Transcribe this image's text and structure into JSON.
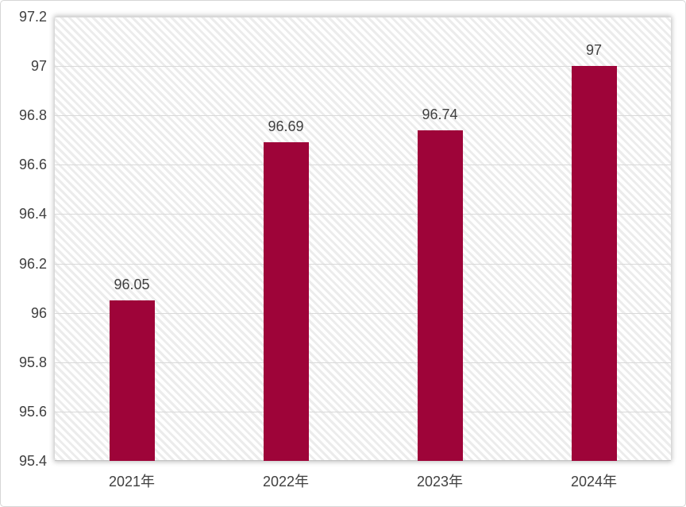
{
  "chart_data": {
    "type": "bar",
    "title": "",
    "xlabel": "",
    "ylabel": "",
    "categories": [
      "2021年",
      "2022年",
      "2023年",
      "2024年"
    ],
    "values": [
      96.05,
      96.69,
      96.74,
      97
    ],
    "data_labels": [
      "96.05",
      "96.69",
      "96.74",
      "97"
    ],
    "y_ticks": [
      "97.2",
      "97",
      "96.8",
      "96.6",
      "96.4",
      "96.2",
      "96",
      "95.8",
      "95.6",
      "95.4"
    ],
    "ylim": [
      95.4,
      97.2
    ],
    "grid": "horizontal gridlines on",
    "legend": "none",
    "plot_background": "white with light-gray downward diagonal hatch stripes and outer drop shadow",
    "colors": {
      "bar": "#9E0439",
      "label_text": "#404040",
      "gridline": "#D9D9D9",
      "axis_line": "#C3C3C3",
      "hatch_stripe": "#ECECEC",
      "background": "#FFFFFF",
      "frame_border": "#D6D6D6"
    }
  }
}
